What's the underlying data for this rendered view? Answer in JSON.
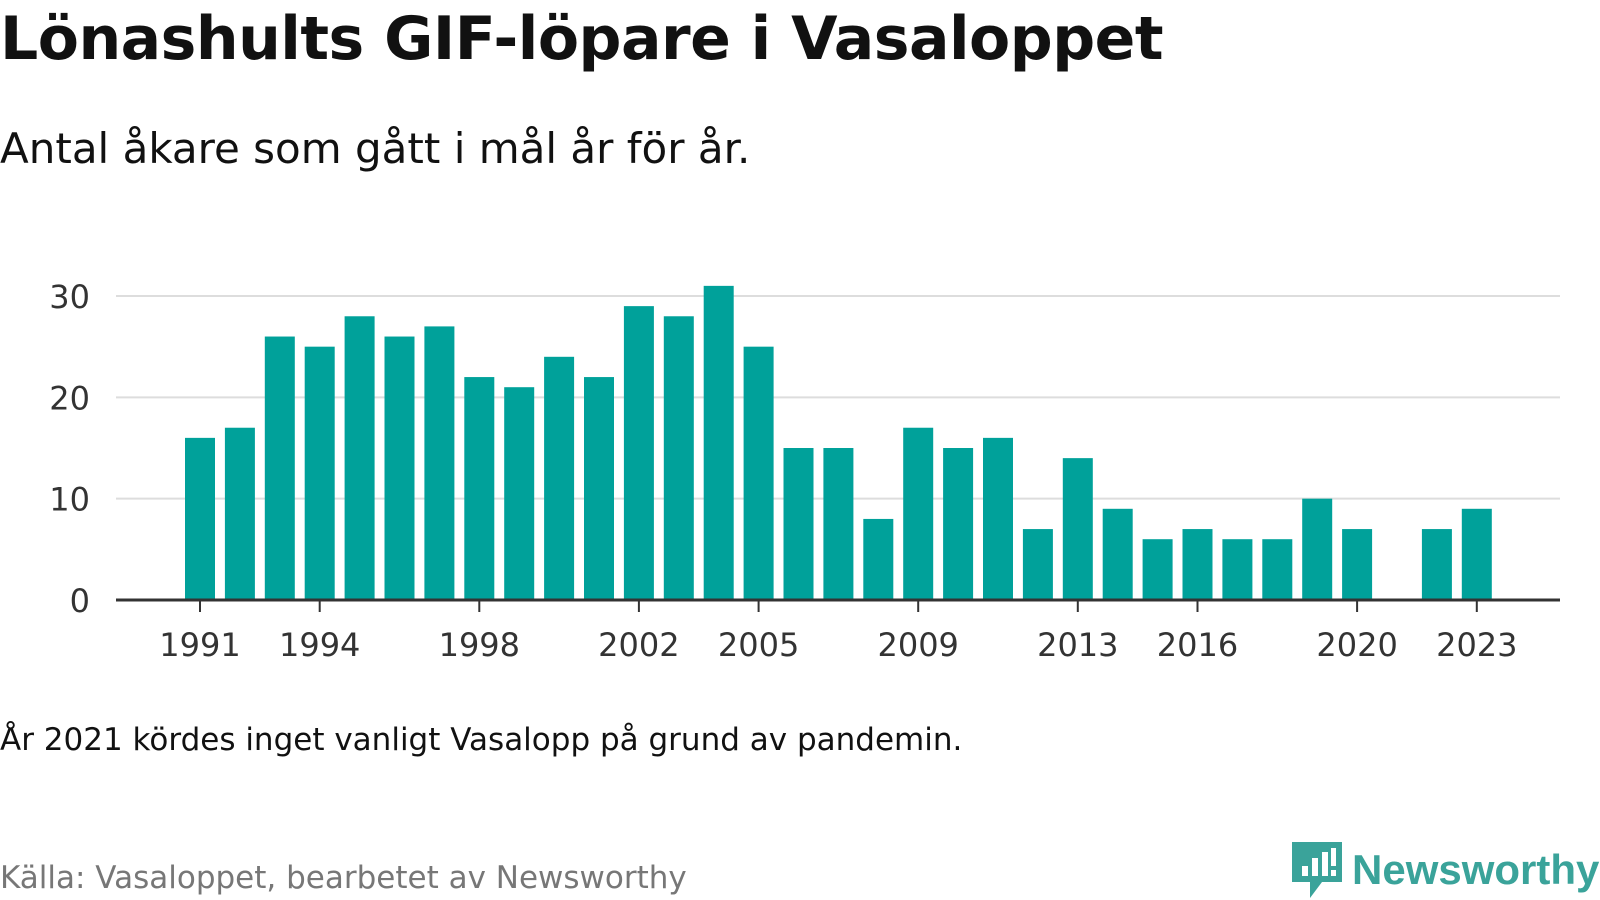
{
  "title": "Lönashults GIF-löpare i Vasaloppet",
  "subtitle": "Antal åkare som gått i mål år för år.",
  "note": "År 2021 kördes inget vanligt Vasalopp på grund av pandemin.",
  "source": "Källa: Vasaloppet, bearbetet av Newsworthy",
  "brand": {
    "name": "Newsworthy",
    "icon": "newsworthy-logo-icon",
    "color": "#3aa39a"
  },
  "colors": {
    "bar": "#00a19a",
    "grid": "#dddddd",
    "axis": "#333333",
    "tick_text": "#333333"
  },
  "chart_data": {
    "type": "bar",
    "title": "Lönashults GIF-löpare i Vasaloppet",
    "subtitle": "Antal åkare som gått i mål år för år.",
    "xlabel": "",
    "ylabel": "",
    "ylim": [
      0,
      30
    ],
    "yticks": [
      0,
      10,
      20,
      30
    ],
    "grid": true,
    "xtick_labels": [
      "1991",
      "1994",
      "1998",
      "2002",
      "2005",
      "2009",
      "2013",
      "2016",
      "2020",
      "2023"
    ],
    "categories": [
      1991,
      1992,
      1993,
      1994,
      1995,
      1996,
      1997,
      1998,
      1999,
      2000,
      2001,
      2002,
      2003,
      2004,
      2005,
      2006,
      2007,
      2008,
      2009,
      2010,
      2011,
      2012,
      2013,
      2014,
      2015,
      2016,
      2017,
      2018,
      2019,
      2020,
      2021,
      2022,
      2023
    ],
    "values": [
      16,
      17,
      26,
      25,
      28,
      26,
      27,
      22,
      21,
      24,
      22,
      29,
      28,
      31,
      25,
      15,
      15,
      8,
      17,
      15,
      16,
      7,
      14,
      9,
      6,
      7,
      6,
      6,
      10,
      7,
      null,
      7,
      9
    ]
  }
}
